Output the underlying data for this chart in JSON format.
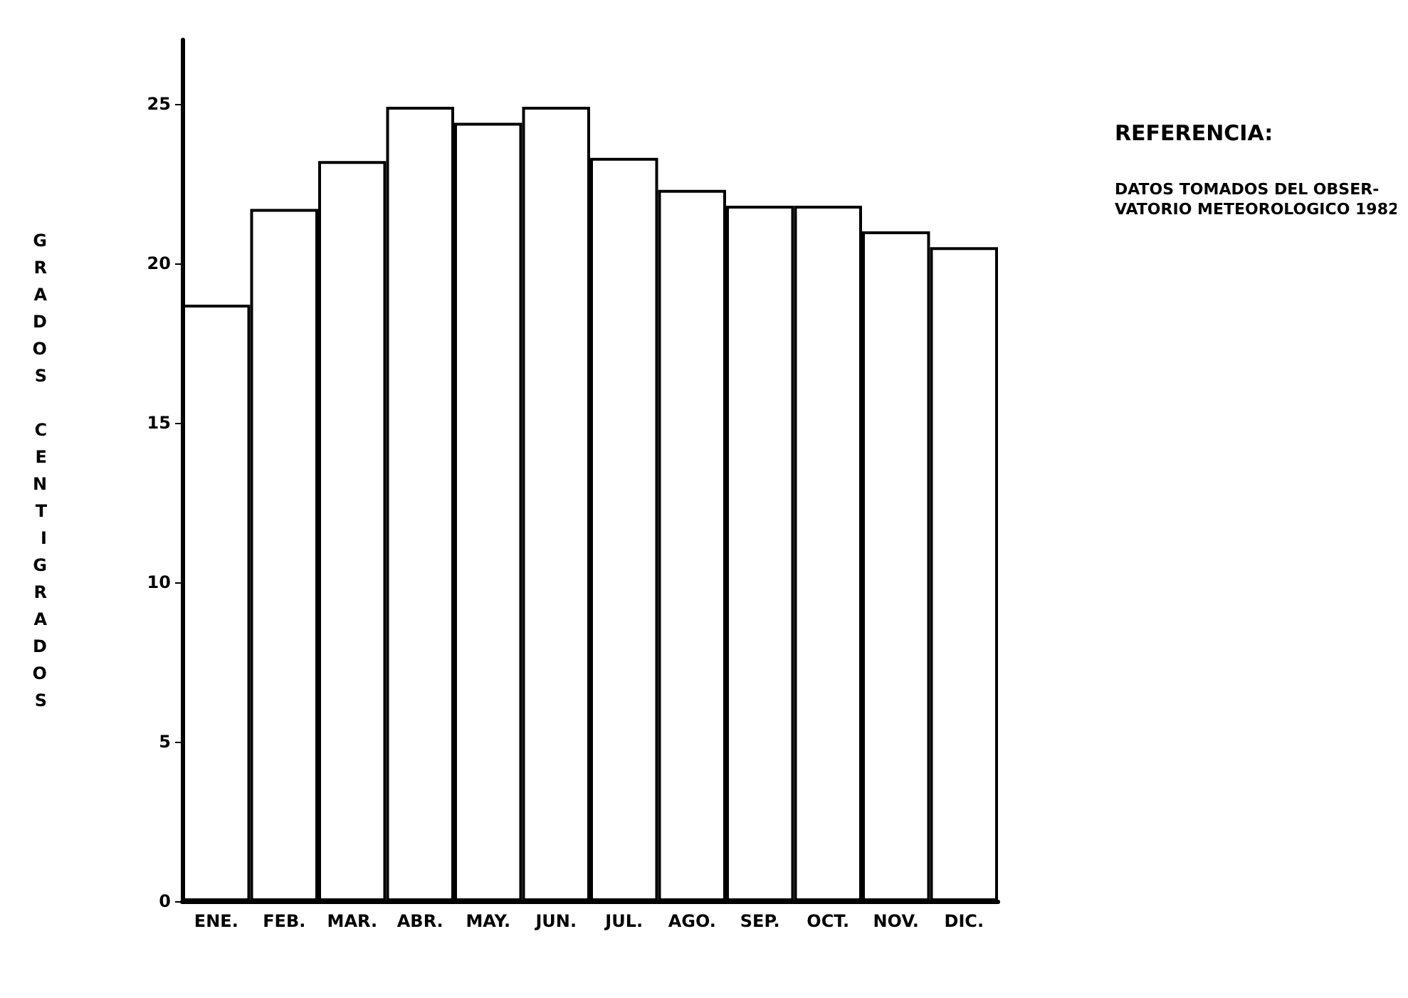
{
  "chart_data": {
    "type": "bar",
    "ylabel": "GRADOS CENTIGRADOS",
    "categories": [
      "ENE.",
      "FEB.",
      "MAR.",
      "ABR.",
      "MAY.",
      "JUN.",
      "JUL.",
      "AGO.",
      "SEP.",
      "OCT.",
      "NOV.",
      "DIC."
    ],
    "values": [
      18.7,
      21.7,
      23.2,
      24.9,
      24.4,
      24.9,
      23.3,
      22.3,
      21.8,
      21.8,
      21.0,
      20.5
    ],
    "color": "#ffffff",
    "ylim": [
      0,
      27
    ],
    "yticks": [
      0,
      5,
      10,
      15,
      20,
      25
    ],
    "grid": false,
    "annotations": [
      "REFERENCIA:",
      "DATOS TOMADOS DEL OBSER-\nVATORIO METEOROLOGICO 1982"
    ]
  }
}
